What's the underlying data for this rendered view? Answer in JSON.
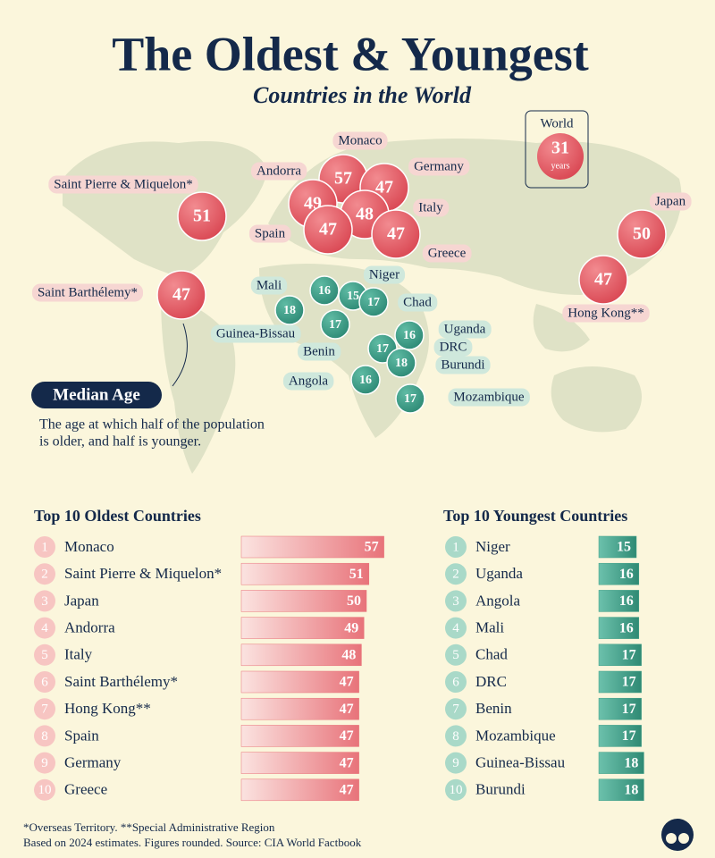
{
  "header": {
    "title": "The Oldest & Youngest",
    "subtitle": "Countries in the World"
  },
  "world": {
    "label": "World",
    "value": 31,
    "unit": "years"
  },
  "map": {
    "oldest": [
      {
        "name": "Monaco",
        "value": 57
      },
      {
        "name": "Germany",
        "value": 47
      },
      {
        "name": "Andorra",
        "value": 49
      },
      {
        "name": "Italy",
        "value": 48
      },
      {
        "name": "Spain",
        "value": 47
      },
      {
        "name": "Greece",
        "value": 47
      },
      {
        "name": "Saint Pierre & Miquelon*",
        "value": 51
      },
      {
        "name": "Japan",
        "value": 50
      },
      {
        "name": "Hong Kong**",
        "value": 47
      },
      {
        "name": "Saint Barthélemy*",
        "value": 47
      }
    ],
    "youngest": [
      {
        "name": "Mali",
        "value": 16
      },
      {
        "name": "Niger",
        "value": 15
      },
      {
        "name": "Chad",
        "value": 17
      },
      {
        "name": "Guinea-Bissau",
        "value": 18
      },
      {
        "name": "Benin",
        "value": 17
      },
      {
        "name": "Uganda",
        "value": 16
      },
      {
        "name": "DRC",
        "value": 17
      },
      {
        "name": "Burundi",
        "value": 18
      },
      {
        "name": "Angola",
        "value": 16
      },
      {
        "name": "Mozambique",
        "value": 17
      }
    ]
  },
  "note": {
    "title": "Median Age",
    "text_lines": [
      "The age at which half of the population",
      "is older, and half is younger."
    ]
  },
  "chart_data": [
    {
      "type": "bar",
      "title": "Top 10 Oldest Countries",
      "color": "#e8737a",
      "ranks": [
        1,
        2,
        3,
        4,
        5,
        6,
        7,
        8,
        9,
        10
      ],
      "categories": [
        "Monaco",
        "Saint Pierre & Miquelon*",
        "Japan",
        "Andorra",
        "Italy",
        "Saint Barthélemy*",
        "Hong Kong**",
        "Spain",
        "Germany",
        "Greece"
      ],
      "values": [
        57,
        51,
        50,
        49,
        48,
        47,
        47,
        47,
        47,
        47
      ]
    },
    {
      "type": "bar",
      "title": "Top 10 Youngest Countries",
      "color": "#3f9f88",
      "ranks": [
        1,
        2,
        3,
        4,
        5,
        6,
        7,
        8,
        9,
        10
      ],
      "categories": [
        "Niger",
        "Uganda",
        "Angola",
        "Mali",
        "Chad",
        "DRC",
        "Benin",
        "Mozambique",
        "Guinea-Bissau",
        "Burundi"
      ],
      "values": [
        15,
        16,
        16,
        16,
        17,
        17,
        17,
        17,
        18,
        18
      ]
    }
  ],
  "footer": [
    "*Overseas Territory. **Special Administrative Region",
    "Based on 2024 estimates. Figures rounded. Source: CIA World Factbook"
  ]
}
